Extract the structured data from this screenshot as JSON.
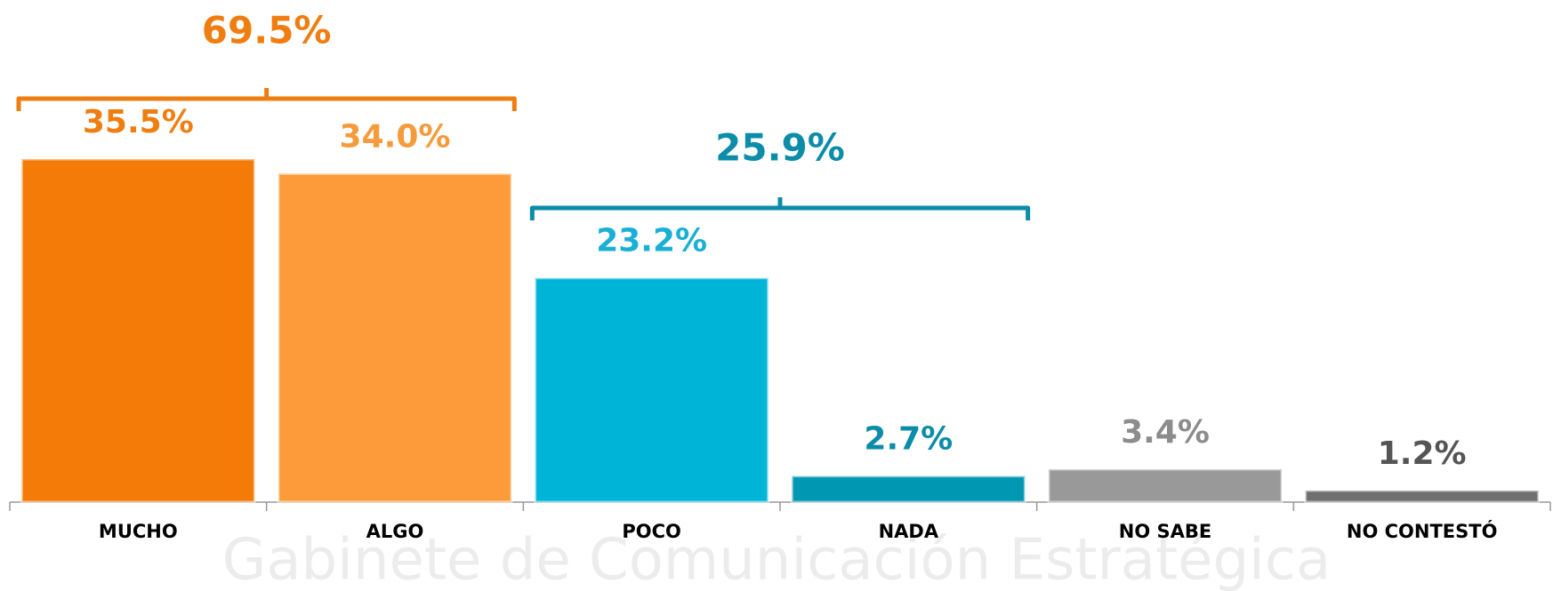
{
  "chart_data": {
    "type": "bar",
    "categories": [
      "MUCHO",
      "ALGO",
      "POCO",
      "NADA",
      "NO SABE",
      "NO CONTESTÓ"
    ],
    "values": [
      35.5,
      34.0,
      23.2,
      2.7,
      3.4,
      1.2
    ],
    "value_labels": [
      "35.5%",
      "34.0%",
      "23.2%",
      "2.7%",
      "3.4%",
      "1.2%"
    ],
    "colors": [
      "#f47b07",
      "#fd9a3a",
      "#00b4d8",
      "#0097b2",
      "#999999",
      "#6f6f6f"
    ],
    "label_colors": [
      "#ef7d10",
      "#f79a3c",
      "#1ab0d5",
      "#0b8ca8",
      "#8c8c8c",
      "#555555"
    ],
    "annotations": [
      {
        "text": "69.5%",
        "color": "#ef7d10"
      },
      {
        "text": "25.9%",
        "color": "#0b8ca8"
      }
    ],
    "watermark": "Gabinete de Comunicación Estratégica"
  }
}
